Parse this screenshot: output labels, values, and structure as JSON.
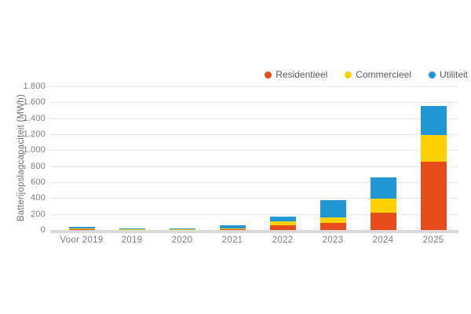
{
  "chart_data": {
    "type": "bar",
    "stacked": true,
    "title": "",
    "xlabel": "",
    "ylabel": "Batterijopslagcapaciteit (MWh)",
    "categories": [
      "Voor 2019",
      "2019",
      "2020",
      "2021",
      "2022",
      "2023",
      "2024",
      "2025"
    ],
    "series": [
      {
        "name": "Residentieel",
        "color": "#e74c1c",
        "values": [
          5,
          0,
          0,
          15,
          55,
          90,
          220,
          860
        ]
      },
      {
        "name": "Commercieel",
        "color": "#fdd000",
        "values": [
          10,
          5,
          8,
          5,
          50,
          70,
          170,
          330
        ]
      },
      {
        "name": "Utiliteit",
        "color": "#2197d5",
        "values": [
          25,
          10,
          7,
          40,
          65,
          210,
          270,
          365
        ]
      }
    ],
    "ylim": [
      0,
      1800
    ],
    "ytick_step": 200,
    "ytick_labels": [
      "0",
      "200",
      "400",
      "600",
      "800",
      "1.000",
      "1.200",
      "1.400",
      "1.600",
      "1.800"
    ],
    "grid": "horizontal-only",
    "legend_position": "top-right"
  },
  "colors": {
    "background": "#ffffff",
    "gridline": "#e8e8e8",
    "baseline": "#d9d9d9",
    "tick_text": "#7b7b7b",
    "axis_title_text": "#6e6e6e",
    "legend_text": "#58595b"
  }
}
